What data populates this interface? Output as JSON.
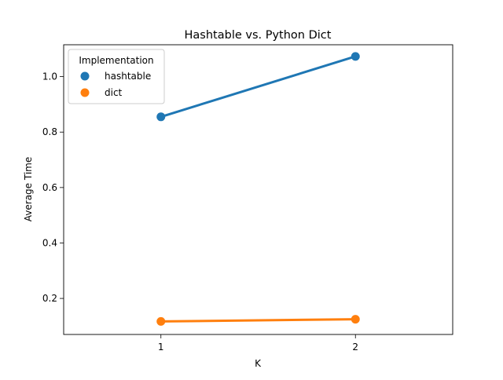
{
  "chart_data": {
    "type": "line",
    "title": "Hashtable vs. Python Dict",
    "xlabel": "K",
    "ylabel": "Average Time",
    "categories": [
      "1",
      "2"
    ],
    "x": [
      1,
      2
    ],
    "xlim": [
      0.5,
      2.5
    ],
    "ylim": [
      0.07,
      1.115
    ],
    "yticks": [
      0.2,
      0.4,
      0.6,
      0.8,
      1.0
    ],
    "ytick_labels": [
      "0.2",
      "0.4",
      "0.6",
      "0.8",
      "1.0"
    ],
    "grid": false,
    "legend": {
      "title": "Implementation",
      "placement": "top-left"
    },
    "series": [
      {
        "name": "hashtable",
        "color": "#1f77b4",
        "values": [
          0.855,
          1.073
        ]
      },
      {
        "name": "dict",
        "color": "#ff7f0e",
        "values": [
          0.117,
          0.125
        ]
      }
    ]
  }
}
